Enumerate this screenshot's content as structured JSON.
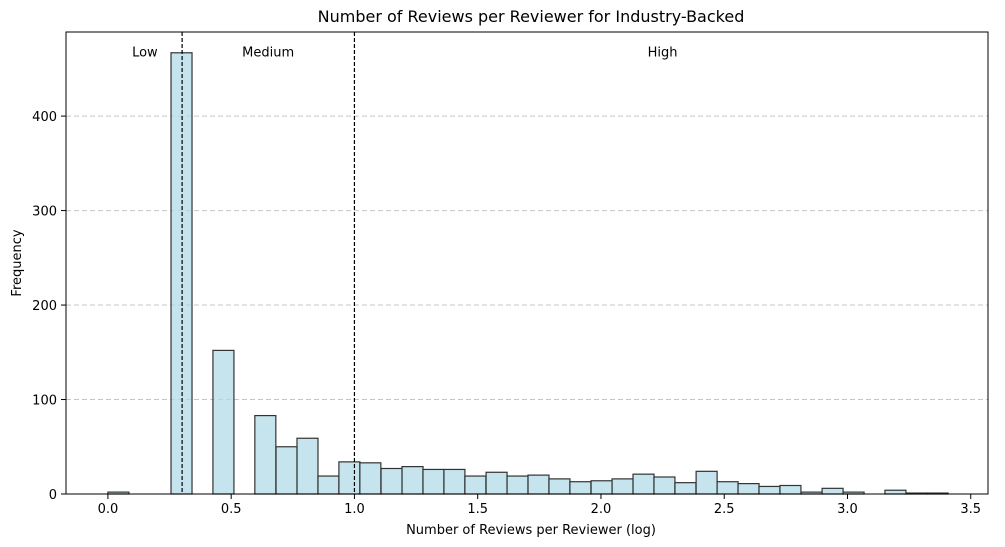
{
  "chart_data": {
    "type": "bar",
    "title": "Number of Reviews per Reviewer for Industry-Backed",
    "xlabel": "Number of Reviews per Reviewer (log)",
    "ylabel": "Frequency",
    "xlim": [
      -0.17,
      3.57
    ],
    "ylim": [
      0,
      489
    ],
    "xticks": [
      0.0,
      0.5,
      1.0,
      1.5,
      2.0,
      2.5,
      3.0,
      3.5
    ],
    "xtick_labels": [
      "0.0",
      "0.5",
      "1.0",
      "1.5",
      "2.0",
      "2.5",
      "3.0",
      "3.5"
    ],
    "yticks": [
      0,
      100,
      200,
      300,
      400
    ],
    "ytick_labels": [
      "0",
      "100",
      "200",
      "300",
      "400"
    ],
    "grid": "y-dashed",
    "bar_fill": "#add8e6",
    "bar_edge": "#333333",
    "bin_width": 0.0852,
    "bins": [
      {
        "start": 0.0,
        "count": 2
      },
      {
        "start": 0.085,
        "count": 0
      },
      {
        "start": 0.17,
        "count": 0
      },
      {
        "start": 0.256,
        "count": 467
      },
      {
        "start": 0.341,
        "count": 0
      },
      {
        "start": 0.426,
        "count": 152
      },
      {
        "start": 0.511,
        "count": 0
      },
      {
        "start": 0.596,
        "count": 83
      },
      {
        "start": 0.682,
        "count": 50
      },
      {
        "start": 0.767,
        "count": 59
      },
      {
        "start": 0.852,
        "count": 19
      },
      {
        "start": 0.937,
        "count": 34
      },
      {
        "start": 1.022,
        "count": 33
      },
      {
        "start": 1.108,
        "count": 27
      },
      {
        "start": 1.193,
        "count": 29
      },
      {
        "start": 1.278,
        "count": 26
      },
      {
        "start": 1.363,
        "count": 26
      },
      {
        "start": 1.448,
        "count": 19
      },
      {
        "start": 1.534,
        "count": 23
      },
      {
        "start": 1.619,
        "count": 19
      },
      {
        "start": 1.704,
        "count": 20
      },
      {
        "start": 1.789,
        "count": 16
      },
      {
        "start": 1.874,
        "count": 13
      },
      {
        "start": 1.96,
        "count": 14
      },
      {
        "start": 2.045,
        "count": 16
      },
      {
        "start": 2.13,
        "count": 21
      },
      {
        "start": 2.215,
        "count": 18
      },
      {
        "start": 2.3,
        "count": 12
      },
      {
        "start": 2.386,
        "count": 24
      },
      {
        "start": 2.471,
        "count": 13
      },
      {
        "start": 2.556,
        "count": 11
      },
      {
        "start": 2.641,
        "count": 8
      },
      {
        "start": 2.726,
        "count": 9
      },
      {
        "start": 2.812,
        "count": 2
      },
      {
        "start": 2.897,
        "count": 6
      },
      {
        "start": 2.982,
        "count": 2
      },
      {
        "start": 3.067,
        "count": 0
      },
      {
        "start": 3.152,
        "count": 4
      },
      {
        "start": 3.238,
        "count": 1
      },
      {
        "start": 3.323,
        "count": 1
      }
    ],
    "thresholds": [
      0.301,
      1.0
    ],
    "threshold_style": "black-dashed",
    "region_labels": [
      {
        "text": "Low",
        "x": 0.15,
        "y": 463
      },
      {
        "text": "Medium",
        "x": 0.65,
        "y": 463
      },
      {
        "text": "High",
        "x": 2.25,
        "y": 463
      }
    ]
  }
}
